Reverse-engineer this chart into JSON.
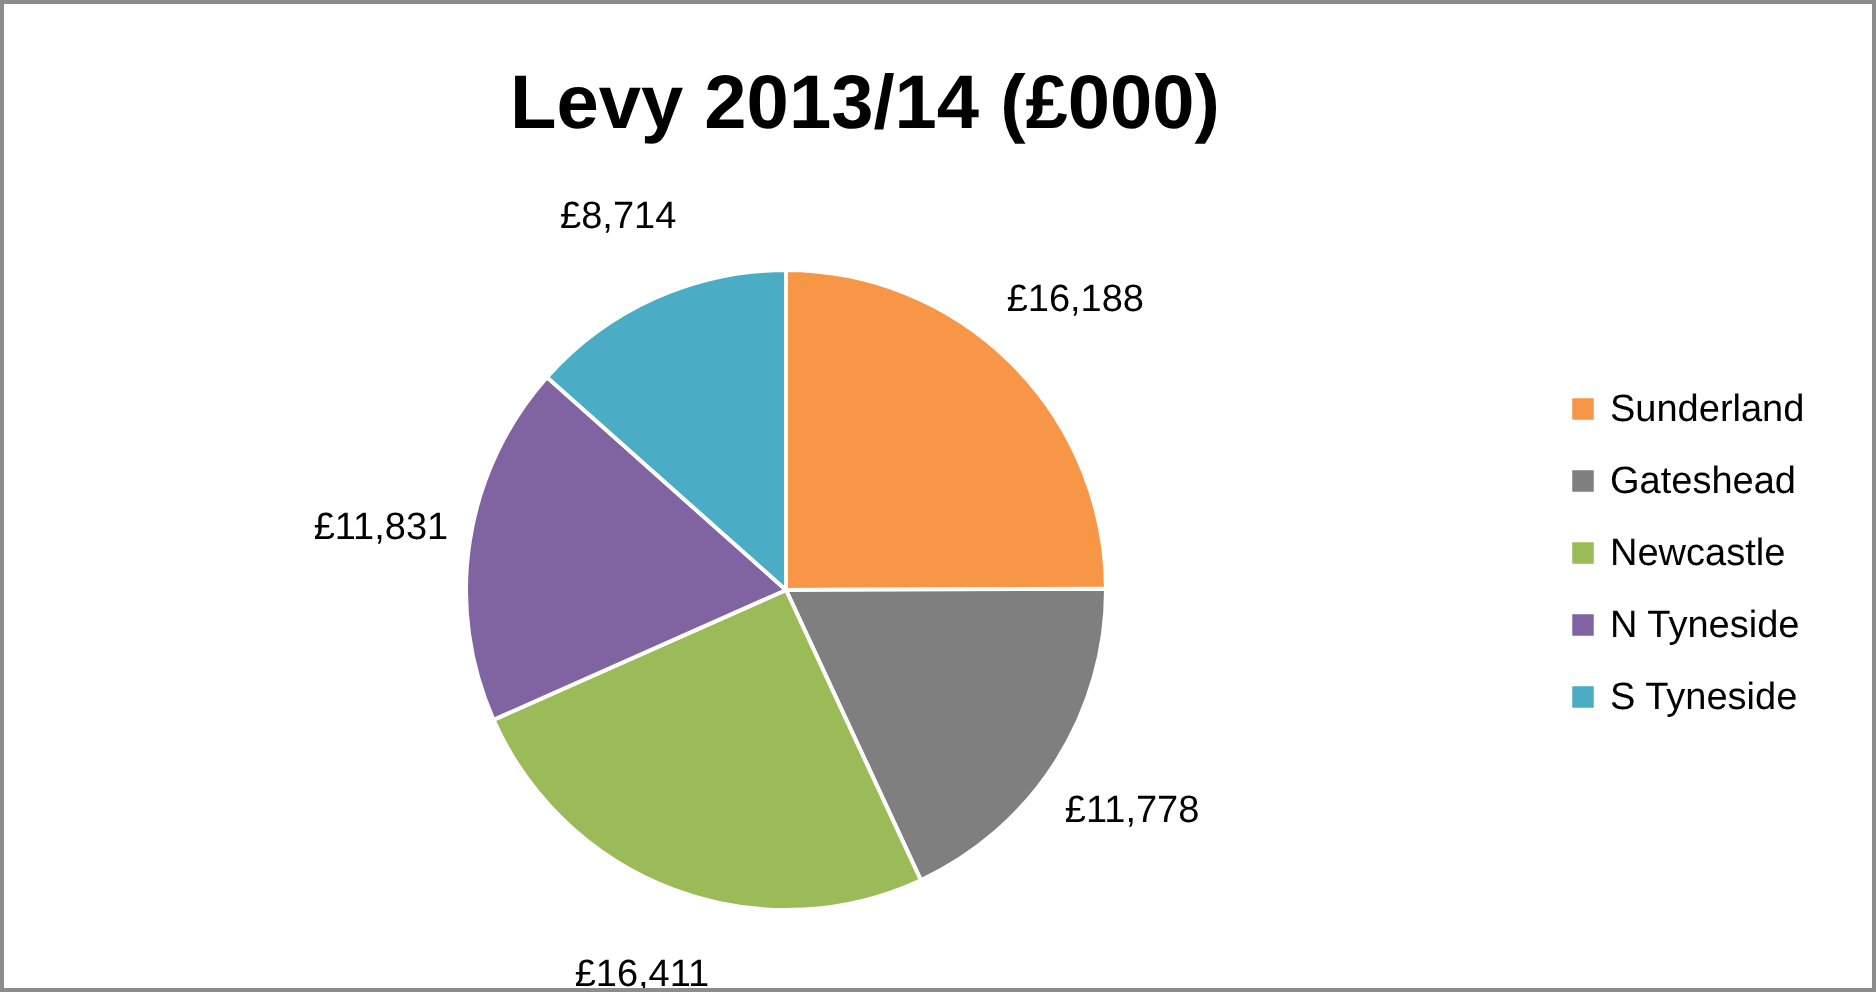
{
  "chart_data": {
    "type": "pie",
    "title": "Levy  2013/14 (£000)",
    "categories": [
      "Sunderland",
      "Gateshead",
      "Newcastle",
      "N Tyneside",
      "S Tyneside"
    ],
    "values": [
      16188,
      11778,
      16411,
      11831,
      8714
    ],
    "colors": [
      "#f79646",
      "#7f7f7f",
      "#9bbb59",
      "#8064a2",
      "#4bacc6"
    ],
    "value_labels": [
      "£16,188",
      "£11,778",
      "£16,411",
      "£11,831",
      "£8,714"
    ],
    "legend": "right"
  }
}
